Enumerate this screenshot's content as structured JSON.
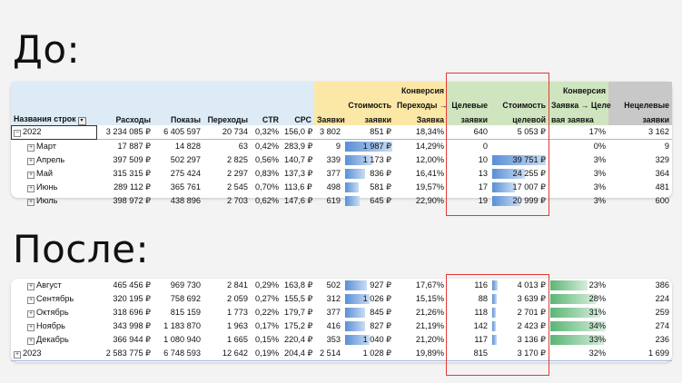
{
  "before_label": "До:",
  "after_label": "После:",
  "headers": {
    "row_labels": "Названия строк",
    "cost": "Расходы",
    "impressions": "Показы",
    "clicks": "Переходы",
    "ctr": "CTR",
    "cpc": "CPC",
    "leads": "Заявки",
    "lead_cost_1": "Стоимость",
    "lead_cost_2": "заявки",
    "conv_1": "Конверсия",
    "conv_2": "Переходы →",
    "conv_3": "Заявка",
    "target_1": "Целевые",
    "target_2": "заявки",
    "target_cost_1": "Стоимость",
    "target_cost_2": "целевой",
    "conv_target_1": "Конверсия",
    "conv_target_2": "Заявка → Целе",
    "conv_target_3": "вая заявка",
    "nontarget_1": "Нецелевые",
    "nontarget_2": "заявки"
  },
  "before_rows": [
    {
      "label": "2022",
      "cost": "3 234 085 ₽",
      "impr": "6 405 597",
      "clicks": "20 734",
      "ctr": "0,32%",
      "cpc": "156,0 ₽",
      "leads": "3 802",
      "lead_cost": "851 ₽",
      "conv": "18,34%",
      "target": "640",
      "target_cost": "5 053 ₽",
      "conv_t": "17%",
      "nontarget": "3 162",
      "lc_bar": 0,
      "tc_bar": 0,
      "ct_bar": 0
    },
    {
      "label": "Март",
      "cost": "17 887 ₽",
      "impr": "14 828",
      "clicks": "63",
      "ctr": "0,42%",
      "cpc": "283,9 ₽",
      "leads": "9",
      "lead_cost": "1 987 ₽",
      "conv": "14,29%",
      "target": "0",
      "target_cost": "",
      "conv_t": "0%",
      "nontarget": "9",
      "lc_bar": 1.0,
      "tc_bar": 0,
      "ct_bar": 0
    },
    {
      "label": "Апрель",
      "cost": "397 509 ₽",
      "impr": "502 297",
      "clicks": "2 825",
      "ctr": "0,56%",
      "cpc": "140,7 ₽",
      "leads": "339",
      "lead_cost": "1 173 ₽",
      "conv": "12,00%",
      "target": "10",
      "target_cost": "39 751 ₽",
      "conv_t": "3%",
      "nontarget": "329",
      "lc_bar": 0.59,
      "tc_bar": 1.0,
      "ct_bar": 0
    },
    {
      "label": "Май",
      "cost": "315 315 ₽",
      "impr": "275 424",
      "clicks": "2 297",
      "ctr": "0,83%",
      "cpc": "137,3 ₽",
      "leads": "377",
      "lead_cost": "836 ₽",
      "conv": "16,41%",
      "target": "13",
      "target_cost": "24 255 ₽",
      "conv_t": "3%",
      "nontarget": "364",
      "lc_bar": 0.42,
      "tc_bar": 0.61,
      "ct_bar": 0
    },
    {
      "label": "Июнь",
      "cost": "289 112 ₽",
      "impr": "365 761",
      "clicks": "2 545",
      "ctr": "0,70%",
      "cpc": "113,6 ₽",
      "leads": "498",
      "lead_cost": "581 ₽",
      "conv": "19,57%",
      "target": "17",
      "target_cost": "17 007 ₽",
      "conv_t": "3%",
      "nontarget": "481",
      "lc_bar": 0.29,
      "tc_bar": 0.43,
      "ct_bar": 0
    },
    {
      "label": "Июль",
      "cost": "398 972 ₽",
      "impr": "438 896",
      "clicks": "2 703",
      "ctr": "0,62%",
      "cpc": "147,6 ₽",
      "leads": "619",
      "lead_cost": "645 ₽",
      "conv": "22,90%",
      "target": "19",
      "target_cost": "20 999 ₽",
      "conv_t": "3%",
      "nontarget": "600",
      "lc_bar": 0.32,
      "tc_bar": 0.53,
      "ct_bar": 0
    }
  ],
  "after_rows": [
    {
      "label": "Август",
      "cost": "465 456 ₽",
      "impr": "969 730",
      "clicks": "2 841",
      "ctr": "0,29%",
      "cpc": "163,8 ₽",
      "leads": "502",
      "lead_cost": "927 ₽",
      "conv": "17,67%",
      "target": "116",
      "target_cost": "4 013 ₽",
      "conv_t": "23%",
      "nontarget": "386",
      "lc_bar": 0.47,
      "tc_bar": 0.1,
      "ct_bar": 0.67
    },
    {
      "label": "Сентябрь",
      "cost": "320 195 ₽",
      "impr": "758 692",
      "clicks": "2 059",
      "ctr": "0,27%",
      "cpc": "155,5 ₽",
      "leads": "312",
      "lead_cost": "1 026 ₽",
      "conv": "15,15%",
      "target": "88",
      "target_cost": "3 639 ₽",
      "conv_t": "28%",
      "nontarget": "224",
      "lc_bar": 0.52,
      "tc_bar": 0.09,
      "ct_bar": 0.82
    },
    {
      "label": "Октябрь",
      "cost": "318 696 ₽",
      "impr": "815 159",
      "clicks": "1 773",
      "ctr": "0,22%",
      "cpc": "179,7 ₽",
      "leads": "377",
      "lead_cost": "845 ₽",
      "conv": "21,26%",
      "target": "118",
      "target_cost": "2 701 ₽",
      "conv_t": "31%",
      "nontarget": "259",
      "lc_bar": 0.43,
      "tc_bar": 0.07,
      "ct_bar": 0.91
    },
    {
      "label": "Ноябрь",
      "cost": "343 998 ₽",
      "impr": "1 183 870",
      "clicks": "1 963",
      "ctr": "0,17%",
      "cpc": "175,2 ₽",
      "leads": "416",
      "lead_cost": "827 ₽",
      "conv": "21,19%",
      "target": "142",
      "target_cost": "2 423 ₽",
      "conv_t": "34%",
      "nontarget": "274",
      "lc_bar": 0.42,
      "tc_bar": 0.06,
      "ct_bar": 1.0
    },
    {
      "label": "Декабрь",
      "cost": "366 944 ₽",
      "impr": "1 080 940",
      "clicks": "1 665",
      "ctr": "0,15%",
      "cpc": "220,4 ₽",
      "leads": "353",
      "lead_cost": "1 040 ₽",
      "conv": "21,20%",
      "target": "117",
      "target_cost": "3 136 ₽",
      "conv_t": "33%",
      "nontarget": "236",
      "lc_bar": 0.52,
      "tc_bar": 0.08,
      "ct_bar": 0.97
    },
    {
      "label": "2023",
      "cost": "2 583 775 ₽",
      "impr": "6 748 593",
      "clicks": "12 642",
      "ctr": "0,19%",
      "cpc": "204,4 ₽",
      "leads": "2 514",
      "lead_cost": "1 028 ₽",
      "conv": "19,89%",
      "target": "815",
      "target_cost": "3 170 ₽",
      "conv_t": "32%",
      "nontarget": "1 699",
      "lc_bar": 0,
      "tc_bar": 0,
      "ct_bar": 0
    }
  ],
  "colors": {
    "highlight": "#e53935",
    "bar_blue": "#5a8fd6",
    "bar_green": "#5cb575"
  }
}
